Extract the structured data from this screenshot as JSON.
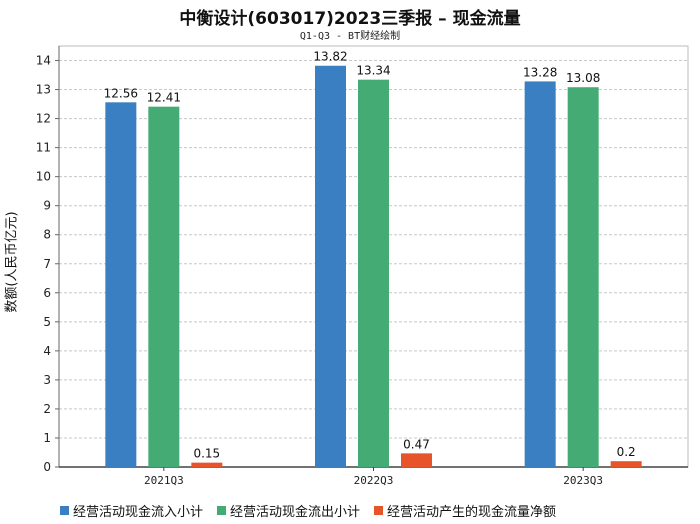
{
  "chart_data": {
    "type": "bar",
    "title": "中衡设计(603017)2023三季报 – 现金流量",
    "subtitle": "Q1-Q3 - BT财经绘制",
    "ylabel": "数额(人民币亿元)",
    "xlabel": "",
    "categories": [
      "2021Q3",
      "2022Q3",
      "2023Q3"
    ],
    "ylim": [
      0,
      14.5
    ],
    "yticks": [
      0,
      1,
      2,
      3,
      4,
      5,
      6,
      7,
      8,
      9,
      10,
      11,
      12,
      13,
      14
    ],
    "grid": true,
    "legend_position": "bottom",
    "series": [
      {
        "name": "经营活动现金流入小计",
        "values": [
          12.56,
          13.82,
          13.28
        ],
        "labels": [
          "12.56",
          "13.82",
          "13.28"
        ],
        "color": "#3a7fc1"
      },
      {
        "name": "经营活动现金流出小计",
        "values": [
          12.41,
          13.34,
          13.08
        ],
        "labels": [
          "12.41",
          "13.34",
          "13.08"
        ],
        "color": "#44ab74"
      },
      {
        "name": "经营活动产生的现金流量净额",
        "values": [
          0.15,
          0.47,
          0.2
        ],
        "labels": [
          "0.15",
          "0.47",
          "0.2"
        ],
        "color": "#e8542a"
      }
    ]
  }
}
